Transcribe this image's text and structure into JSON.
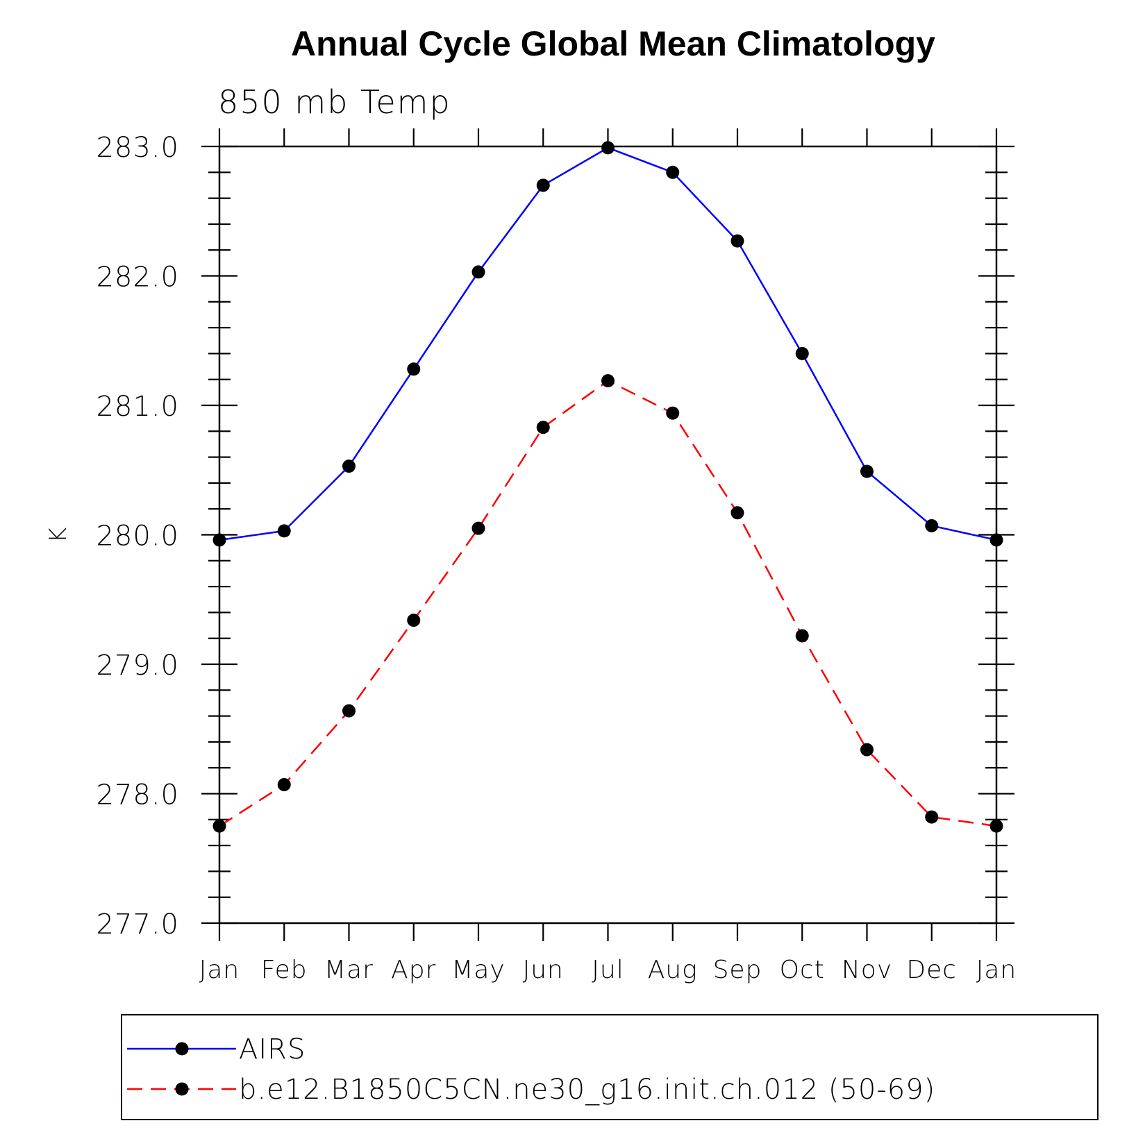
{
  "chart_data": {
    "type": "line",
    "title": "Annual Cycle Global Mean Climatology",
    "subtitle": "850 mb Temp",
    "xlabel": "",
    "ylabel": "K",
    "categories": [
      "Jan",
      "Feb",
      "Mar",
      "Apr",
      "May",
      "Jun",
      "Jul",
      "Aug",
      "Sep",
      "Oct",
      "Nov",
      "Dec",
      "Jan"
    ],
    "ylim": [
      277.0,
      283.0
    ],
    "yticks": [
      "283.0",
      "282.0",
      "281.0",
      "280.0",
      "279.0",
      "278.0",
      "277.0"
    ],
    "grid": false,
    "legend_position": "bottom",
    "series": [
      {
        "name": "AIRS",
        "color": "#0000ff",
        "line_style": "solid",
        "marker": "filled-circle",
        "values": [
          279.96,
          280.03,
          280.53,
          281.28,
          282.03,
          282.7,
          282.99,
          282.8,
          282.27,
          281.4,
          280.49,
          280.07,
          279.96
        ]
      },
      {
        "name": "b.e12.B1850C5CN.ne30_g16.init.ch.012 (50-69)",
        "color": "#ff0000",
        "line_style": "dashed",
        "marker": "filled-circle",
        "values": [
          277.75,
          278.07,
          278.64,
          279.34,
          280.05,
          280.83,
          281.19,
          280.94,
          280.17,
          279.22,
          278.34,
          277.82,
          277.75
        ]
      }
    ]
  }
}
